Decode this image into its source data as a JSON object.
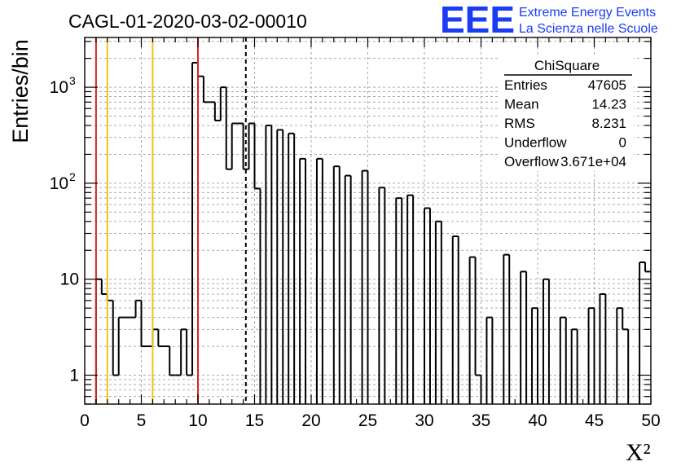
{
  "header": {
    "run_title": "CAGL-01-2020-03-02-00010",
    "logo_text": "EEE",
    "logo_line1": "Extreme Energy Events",
    "logo_line2": "La Scienza nelle Scuole"
  },
  "stats_box": {
    "name": "ChiSquare",
    "rows": [
      {
        "label": "Entries",
        "value": "47605"
      },
      {
        "label": "Mean",
        "value": "14.23"
      },
      {
        "label": "RMS",
        "value": "8.231"
      },
      {
        "label": "Underflow",
        "value": "0"
      },
      {
        "label": "Overflow",
        "value": "3.671e+04"
      }
    ]
  },
  "colors": {
    "histogram": "#000000",
    "red_lines": "#dd2222",
    "yellow_lines": "#f2c21b",
    "grid": "#aaaaaa",
    "logo": "#1a3cf5"
  },
  "chart_data": {
    "type": "histogram",
    "title": "CAGL-01-2020-03-02-00010",
    "xlabel": "X²",
    "ylabel": "Entries/bin",
    "xlim": [
      0,
      50
    ],
    "ylim": [
      0.5,
      3300
    ],
    "y_scale": "log",
    "grid": true,
    "legend": "top-right stats box",
    "bin_width": 0.5,
    "x_ticks": [
      0,
      5,
      10,
      15,
      20,
      25,
      30,
      35,
      40,
      45,
      50
    ],
    "x_tick_labels": [
      "0",
      "5",
      "10",
      "15",
      "20",
      "25",
      "30",
      "35",
      "40",
      "45",
      "50"
    ],
    "y_ticks": [
      1,
      10,
      100,
      1000
    ],
    "y_tick_labels": [
      "1",
      "10",
      "10²",
      "10³"
    ],
    "counts": [
      0,
      0,
      10,
      7,
      6,
      1,
      4,
      4,
      4,
      6,
      2,
      2,
      3,
      2,
      2,
      1,
      1,
      3,
      1,
      1800,
      1300,
      700,
      700,
      450,
      1000,
      140,
      420,
      420,
      140,
      420,
      88,
      0,
      400,
      0,
      360,
      0,
      330,
      0,
      180,
      0,
      0,
      180,
      0,
      0,
      150,
      0,
      120,
      0,
      0,
      135,
      0,
      0,
      90,
      0,
      0,
      70,
      0,
      75,
      0,
      0,
      55,
      0,
      40,
      0,
      0,
      28,
      0,
      0,
      17,
      1,
      0,
      4,
      0,
      0,
      18,
      0,
      0,
      12,
      0,
      5,
      0,
      10,
      0,
      0,
      4,
      0,
      3,
      0,
      0,
      5,
      0,
      7,
      0,
      0,
      5,
      3,
      0,
      0,
      15,
      12
    ],
    "vertical_lines": [
      {
        "x": 1,
        "color": "red",
        "style": "solid"
      },
      {
        "x": 2,
        "color": "yellow",
        "style": "solid"
      },
      {
        "x": 6,
        "color": "yellow",
        "style": "solid"
      },
      {
        "x": 10,
        "color": "red",
        "style": "solid"
      },
      {
        "x": 14.23,
        "color": "black",
        "style": "dashed"
      }
    ]
  }
}
